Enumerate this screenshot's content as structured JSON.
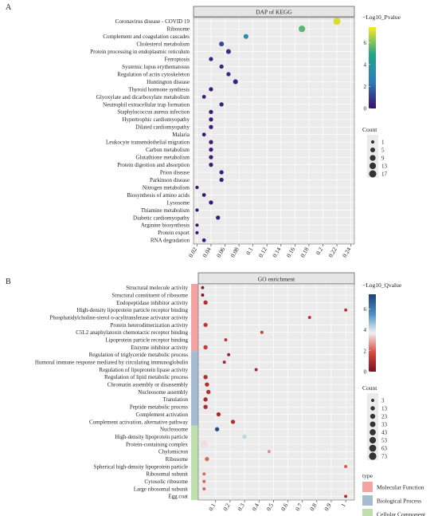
{
  "chart_data": [
    {
      "panel": "A",
      "type": "scatter",
      "title": "DAP of KEGG",
      "categories": [
        "Coronavirus disease - COVID 19",
        "Ribosome",
        "Complement and coagulation cascades",
        "Cholesterol metabolism",
        "Protein processing in endoplasmic reticulum",
        "Ferroptosis",
        "Systemic lupus erythematosus",
        "Regulation of actin cytoskeleton",
        "Huntington disease",
        "Thyroid hormone synthesis",
        "Glyoxylate and dicarboxylate metabolism",
        "Neutrophil extracellular trap formation",
        "Staphylococcus aureus infection",
        "Hypertrophic cardiomyopathy",
        "Dilated cardiomyopathy",
        "Malaria",
        "Leukocyte transendothelial migration",
        "Carbon metabolism",
        "Glutathione metabolism",
        "Protein digestion and absorption",
        "Prion disease",
        "Parkinson disease",
        "Nitrogen metabolism",
        "Biosynthesis of amino acids",
        "Lysosome",
        "Thiamine metabolism",
        "Diabetic cardiomyopathy",
        "Arginine biosynthesis",
        "Protein export",
        "RNA degradation"
      ],
      "x": [
        0.22,
        0.17,
        0.09,
        0.055,
        0.065,
        0.04,
        0.055,
        0.065,
        0.075,
        0.04,
        0.03,
        0.055,
        0.04,
        0.04,
        0.04,
        0.03,
        0.04,
        0.04,
        0.04,
        0.04,
        0.055,
        0.055,
        0.02,
        0.03,
        0.04,
        0.02,
        0.05,
        0.02,
        0.02,
        0.03
      ],
      "color_values": [
        7.0,
        5.6,
        3.2,
        1.3,
        0.8,
        0.5,
        0.5,
        0.6,
        0.5,
        0.4,
        0.3,
        0.4,
        0.3,
        0.3,
        0.3,
        0.2,
        0.3,
        0.3,
        0.3,
        0.2,
        0.3,
        0.3,
        0.1,
        0.2,
        0.2,
        0.1,
        0.3,
        0.1,
        0.1,
        0.1
      ],
      "counts": [
        17,
        13,
        5,
        5,
        5,
        3,
        3,
        3,
        5,
        3,
        2,
        3,
        3,
        3,
        3,
        2,
        3,
        3,
        3,
        3,
        3,
        3,
        1,
        2,
        3,
        1,
        3,
        1,
        1,
        2
      ],
      "xticks": [
        "0.02",
        "0.04",
        "0.06",
        "0.08",
        "0.1",
        "0.12",
        "0.14",
        "0.16",
        "0.18",
        "0.2",
        "0.22",
        "0.24"
      ],
      "xlim": [
        0.015,
        0.245
      ],
      "color_legend": {
        "title": "−Log10_Pvalue",
        "ticks": [
          "0",
          "2",
          "4",
          "6"
        ],
        "range": [
          0,
          7.4
        ],
        "colors": [
          "#3b0f6f",
          "#2c7fb8",
          "#21a685",
          "#fde725"
        ]
      },
      "size_legend": {
        "title": "Count",
        "values": [
          1,
          5,
          9,
          13,
          17
        ]
      },
      "grid": true
    },
    {
      "panel": "B",
      "type": "scatter",
      "title": "GO enrichment",
      "categories": [
        "Structural molecule activity",
        "Structural constituent of ribosome",
        "Endopeptidase inhibitor activity",
        "High-density lipoprotein particle receptor binding",
        "Phosphatidylcholine-sterol o-acyltransferase activator activity",
        "Protein heterodimerization activity",
        "C5L2 anaphylatoxin chemotactic receptor binding",
        "Lipoprotein particle receptor binding",
        "Enzyme inhibitor activity",
        "Regulation of triglyceride metabolic process",
        "Humoral immune response mediated by circulating immunoglobulin",
        "Regulation of lipoprotein lipase activity",
        "Regulation of lipid metabolic process",
        "Chromatin assembly or disassembly",
        "Nucleosome assembly",
        "Translation",
        "Peptide metabolic process",
        "Complement activation",
        "Complement activation, alternative pathway",
        "Nucleosome",
        "High-density lipoprotein particle",
        "Protein-containing complex",
        "Chylomicron",
        "Ribosome",
        "Spherical high-density lipoprotein particle",
        "Ribosomal subunit",
        "Cytosolic ribosome",
        "Large ribosomal subunit",
        "Egg coat"
      ],
      "x": [
        0.01,
        0.01,
        0.03,
        1.0,
        0.75,
        0.03,
        0.42,
        0.17,
        0.03,
        0.19,
        0.16,
        0.38,
        0.03,
        0.04,
        0.05,
        0.03,
        0.03,
        0.12,
        0.22,
        0.11,
        0.3,
        0.02,
        0.47,
        0.04,
        1.0,
        0.02,
        0.02,
        0.02,
        1.0
      ],
      "color_values": [
        0.3,
        0.2,
        1.0,
        1.2,
        1.1,
        1.3,
        1.5,
        1.2,
        1.4,
        0.6,
        0.7,
        0.8,
        1.0,
        1.0,
        1.0,
        0.9,
        0.9,
        0.9,
        1.0,
        7.0,
        4.2,
        3.5,
        2.6,
        2.2,
        2.0,
        2.1,
        2.1,
        2.1,
        1.0
      ],
      "counts": [
        3,
        3,
        13,
        3,
        3,
        13,
        3,
        3,
        13,
        3,
        3,
        3,
        13,
        13,
        13,
        13,
        13,
        13,
        13,
        13,
        13,
        73,
        3,
        13,
        3,
        3,
        3,
        3,
        3
      ],
      "xticks": [
        "0.1",
        "0.2",
        "0.3",
        "0.4",
        "0.5",
        "0.6",
        "0.7",
        "0.8",
        "0.9",
        "1"
      ],
      "xlim": [
        -0.02,
        1.06
      ],
      "color_legend": {
        "title": "−Log10_Qvalue",
        "ticks": [
          "0",
          "2",
          "4",
          "6"
        ],
        "range": [
          0,
          7.4
        ],
        "colors": [
          "#7b1020",
          "#d94b3f",
          "#f0f0f0",
          "#4a8ec4",
          "#1f3f7a"
        ]
      },
      "size_legend": {
        "title": "Count",
        "values": [
          3,
          13,
          23,
          33,
          43,
          53,
          63,
          73
        ]
      },
      "type_legend": {
        "title": "type",
        "items": [
          {
            "label": "Molecular Function",
            "color": "#f4a3a3",
            "rows": 9
          },
          {
            "label": "Biological Process",
            "color": "#a7bcd3",
            "rows": 10
          },
          {
            "label": "Cellular Component",
            "color": "#bfe0ae",
            "rows": 10
          }
        ]
      },
      "grid": true
    }
  ],
  "panel_labels": [
    "A",
    "B"
  ]
}
